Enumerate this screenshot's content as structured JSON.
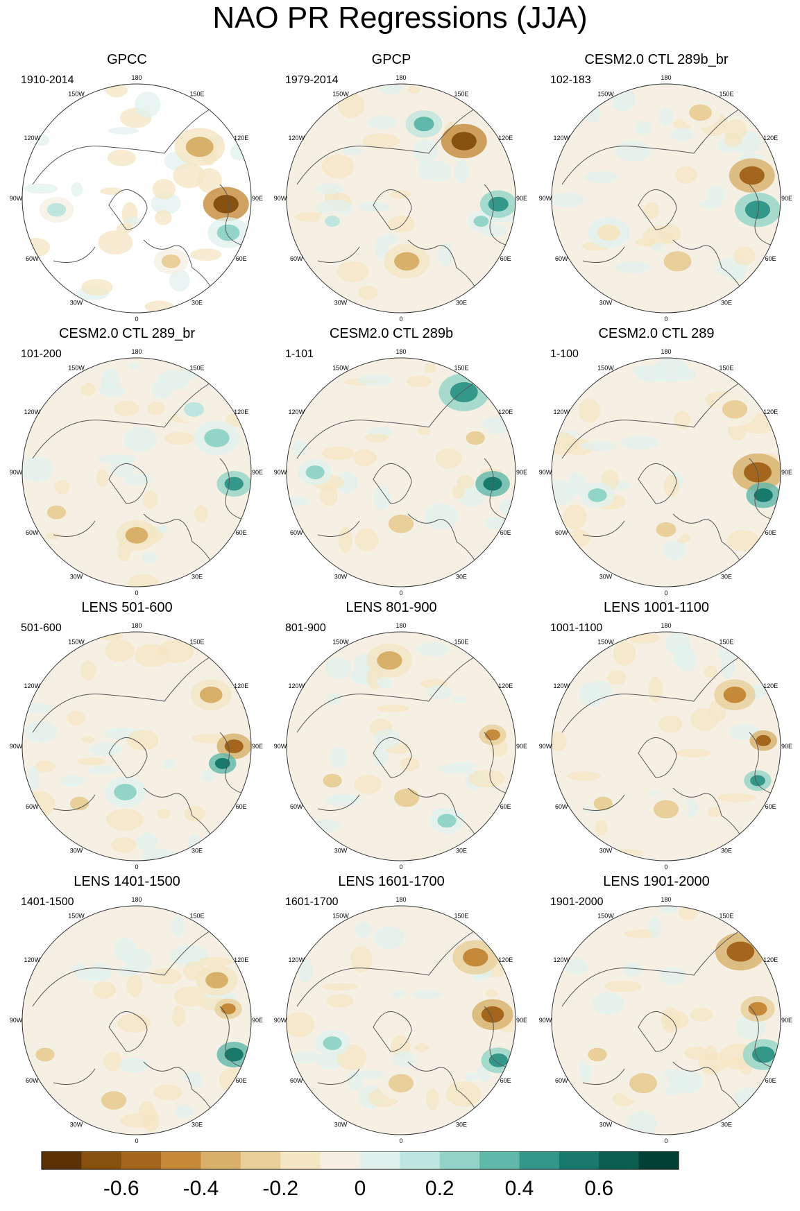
{
  "title": "NAO PR Regressions (JJA)",
  "chart_data": {
    "type": "heatmap",
    "projection": "north-polar-stereographic",
    "season": "JJA",
    "longitude_labels": [
      "180",
      "150E",
      "120E",
      "90E",
      "60E",
      "30E",
      "0",
      "30W",
      "60W",
      "90W",
      "120W",
      "150W"
    ],
    "panels": [
      {
        "title": "GPCC",
        "period": "1910-2014"
      },
      {
        "title": "GPCP",
        "period": "1979-2014"
      },
      {
        "title": "CESM2.0 CTL 289b_br",
        "period": "102-183"
      },
      {
        "title": "CESM2.0 CTL 289_br",
        "period": "101-200"
      },
      {
        "title": "CESM2.0 CTL 289b",
        "period": "1-101"
      },
      {
        "title": "CESM2.0 CTL 289",
        "period": "1-100"
      },
      {
        "title": "LENS 501-600",
        "period": "501-600"
      },
      {
        "title": "LENS 801-900",
        "period": "801-900"
      },
      {
        "title": "LENS 1001-1100",
        "period": "1001-1100"
      },
      {
        "title": "LENS 1401-1500",
        "period": "1401-1500"
      },
      {
        "title": "LENS 1601-1700",
        "period": "1601-1700"
      },
      {
        "title": "LENS 1901-2000",
        "period": "1901-2000"
      }
    ],
    "colorbar": {
      "range": [
        -0.8,
        0.8
      ],
      "step": 0.1,
      "tick_labels": [
        "-0.6",
        "-0.4",
        "-0.2",
        "0",
        "0.2",
        "0.4",
        "0.6"
      ],
      "tick_values": [
        -0.6,
        -0.4,
        -0.2,
        0,
        0.2,
        0.4,
        0.6
      ],
      "colors": [
        "#5a3206",
        "#86500f",
        "#a3661c",
        "#c48a3a",
        "#d8b06a",
        "#e9cf9a",
        "#f4e6c3",
        "#f5f0e3",
        "#e1f1ee",
        "#bfe6de",
        "#92d4c7",
        "#5fb8a9",
        "#33978a",
        "#187a6c",
        "#0b5e50",
        "#023f34"
      ]
    }
  }
}
